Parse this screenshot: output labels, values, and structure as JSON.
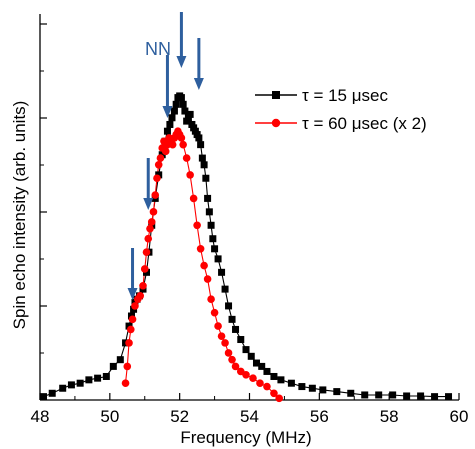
{
  "chart_data": {
    "type": "scatter",
    "title": "",
    "xlabel": "Frequency (MHz)",
    "ylabel": "Spin echo intensity (arb. units)",
    "xlim": [
      48,
      60
    ],
    "ylim": [
      0,
      1
    ],
    "x_ticks": [
      "48",
      "50",
      "52",
      "54",
      "56",
      "58",
      "60"
    ],
    "y_ticks": [],
    "grid": false,
    "legend_position": "right",
    "series": [
      {
        "name": "τ = 15 μsec",
        "color": "#000000",
        "marker": "square",
        "connected": true,
        "x": [
          48.1,
          48.35,
          48.65,
          48.9,
          49.15,
          49.4,
          49.65,
          49.9,
          50.1,
          50.3,
          50.45,
          50.55,
          50.62,
          50.68,
          50.72,
          50.78,
          50.85,
          50.95,
          51.05,
          51.12,
          51.2,
          51.3,
          51.4,
          51.5,
          51.58,
          51.65,
          51.72,
          51.78,
          51.85,
          51.9,
          51.95,
          52.0,
          52.05,
          52.1,
          52.15,
          52.2,
          52.25,
          52.3,
          52.35,
          52.4,
          52.45,
          52.5,
          52.55,
          52.6,
          52.65,
          52.7,
          52.75,
          52.8,
          52.85,
          52.9,
          52.95,
          53.0,
          53.1,
          53.2,
          53.3,
          53.4,
          53.5,
          53.6,
          53.75,
          53.9,
          54.05,
          54.2,
          54.35,
          54.5,
          54.7,
          54.9,
          55.2,
          55.5,
          55.8,
          56.1,
          56.5,
          56.9,
          57.3,
          57.7,
          58.1,
          58.5,
          58.9,
          59.3,
          59.7
        ],
        "values": [
          0.01,
          0.02,
          0.035,
          0.045,
          0.05,
          0.06,
          0.065,
          0.07,
          0.1,
          0.12,
          0.17,
          0.22,
          0.25,
          0.27,
          0.29,
          0.3,
          0.31,
          0.33,
          0.38,
          0.44,
          0.52,
          0.6,
          0.67,
          0.73,
          0.77,
          0.8,
          0.82,
          0.84,
          0.86,
          0.88,
          0.9,
          0.905,
          0.9,
          0.88,
          0.86,
          0.83,
          0.84,
          0.85,
          0.82,
          0.81,
          0.8,
          0.79,
          0.78,
          0.76,
          0.72,
          0.7,
          0.66,
          0.6,
          0.56,
          0.52,
          0.48,
          0.45,
          0.42,
          0.38,
          0.33,
          0.28,
          0.24,
          0.21,
          0.18,
          0.15,
          0.13,
          0.11,
          0.1,
          0.085,
          0.07,
          0.06,
          0.05,
          0.04,
          0.035,
          0.03,
          0.025,
          0.02,
          0.015,
          0.015,
          0.015,
          0.012,
          0.012,
          0.01,
          0.01
        ]
      },
      {
        "name": "τ = 60 μsec (x 2)",
        "color": "#ff0000",
        "marker": "circle",
        "connected": true,
        "x": [
          50.45,
          50.5,
          50.55,
          50.6,
          50.65,
          50.72,
          50.8,
          50.87,
          50.95,
          51.0,
          51.05,
          51.1,
          51.15,
          51.2,
          51.25,
          51.3,
          51.35,
          51.4,
          51.45,
          51.5,
          51.55,
          51.6,
          51.65,
          51.7,
          51.75,
          51.8,
          51.85,
          51.9,
          51.95,
          52.0,
          52.05,
          52.1,
          52.2,
          52.3,
          52.4,
          52.5,
          52.6,
          52.7,
          52.8,
          52.9,
          53.0,
          53.1,
          53.2,
          53.3,
          53.4,
          53.5,
          53.6,
          53.75,
          53.9,
          54.1,
          54.3,
          54.5,
          54.7,
          54.85
        ],
        "values": [
          0.05,
          0.1,
          0.17,
          0.21,
          0.24,
          0.28,
          0.3,
          0.31,
          0.34,
          0.39,
          0.44,
          0.48,
          0.51,
          0.53,
          0.56,
          0.61,
          0.66,
          0.7,
          0.72,
          0.75,
          0.77,
          0.74,
          0.76,
          0.78,
          0.77,
          0.76,
          0.78,
          0.79,
          0.8,
          0.79,
          0.78,
          0.76,
          0.72,
          0.67,
          0.6,
          0.52,
          0.45,
          0.4,
          0.36,
          0.3,
          0.26,
          0.22,
          0.19,
          0.17,
          0.14,
          0.12,
          0.1,
          0.085,
          0.075,
          0.065,
          0.05,
          0.04,
          0.02,
          0.005
        ]
      }
    ],
    "annotations": [
      {
        "text": "NN",
        "color": "#2e5f9e"
      }
    ],
    "arrows": [
      {
        "x": 50.65,
        "color": "#2e5f9e"
      },
      {
        "x": 51.1,
        "color": "#2e5f9e"
      },
      {
        "x": 51.65,
        "color": "#2e5f9e"
      },
      {
        "x": 52.05,
        "color": "#2e5f9e"
      },
      {
        "x": 52.55,
        "color": "#2e5f9e"
      }
    ]
  }
}
